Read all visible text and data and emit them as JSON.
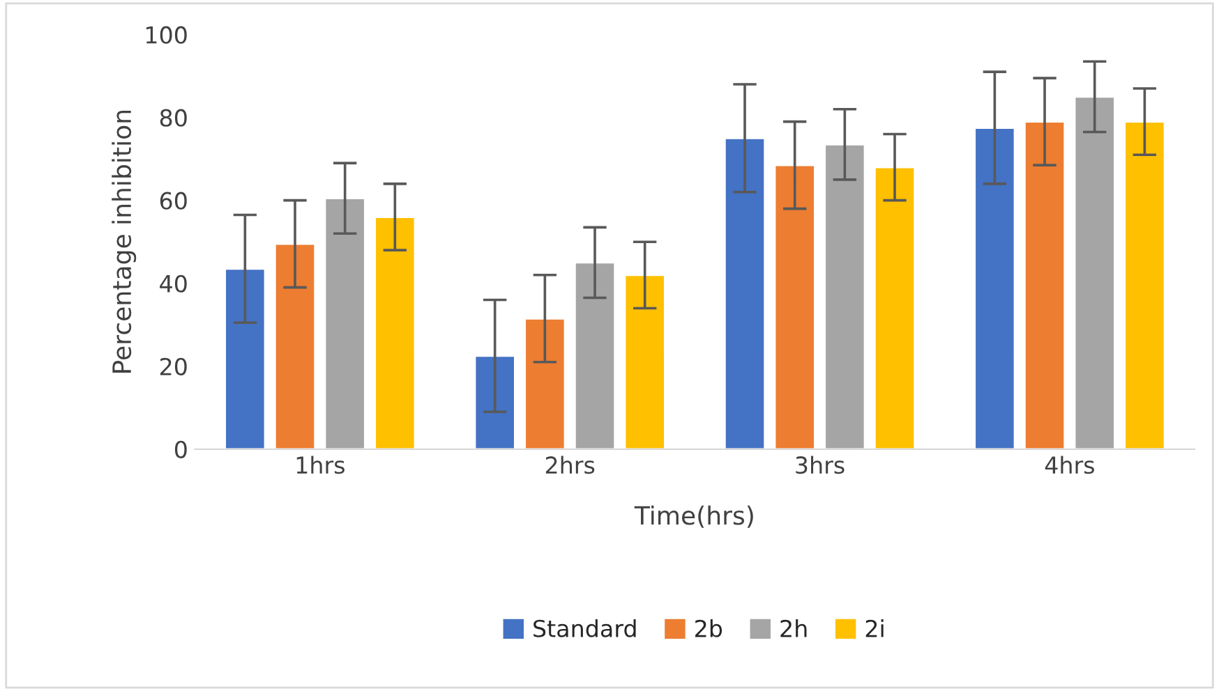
{
  "chart_data": {
    "type": "bar",
    "xlabel": "Time(hrs)",
    "ylabel": "Percentage inhibition",
    "categories": [
      "1hrs",
      "2hrs",
      "3hrs",
      "4hrs"
    ],
    "ylim": [
      0,
      100
    ],
    "yticks": [
      0,
      20,
      40,
      60,
      80,
      100
    ],
    "grid": false,
    "legend": "bottom",
    "series": [
      {
        "name": "Standard",
        "color": "#4472c4",
        "values": [
          43.5,
          22.5,
          75,
          77.5
        ],
        "errors": [
          13,
          13.5,
          13,
          13.5
        ]
      },
      {
        "name": "2b",
        "color": "#ed7d31",
        "values": [
          49.5,
          31.5,
          68.5,
          79
        ],
        "errors": [
          10.5,
          10.5,
          10.5,
          10.5
        ]
      },
      {
        "name": "2h",
        "color": "#a5a5a5",
        "values": [
          60.5,
          45,
          73.5,
          85
        ],
        "errors": [
          8.5,
          8.5,
          8.5,
          8.5
        ]
      },
      {
        "name": "2i",
        "color": "#ffc000",
        "values": [
          56,
          42,
          68,
          79
        ],
        "errors": [
          8,
          8,
          8,
          8
        ]
      }
    ]
  }
}
